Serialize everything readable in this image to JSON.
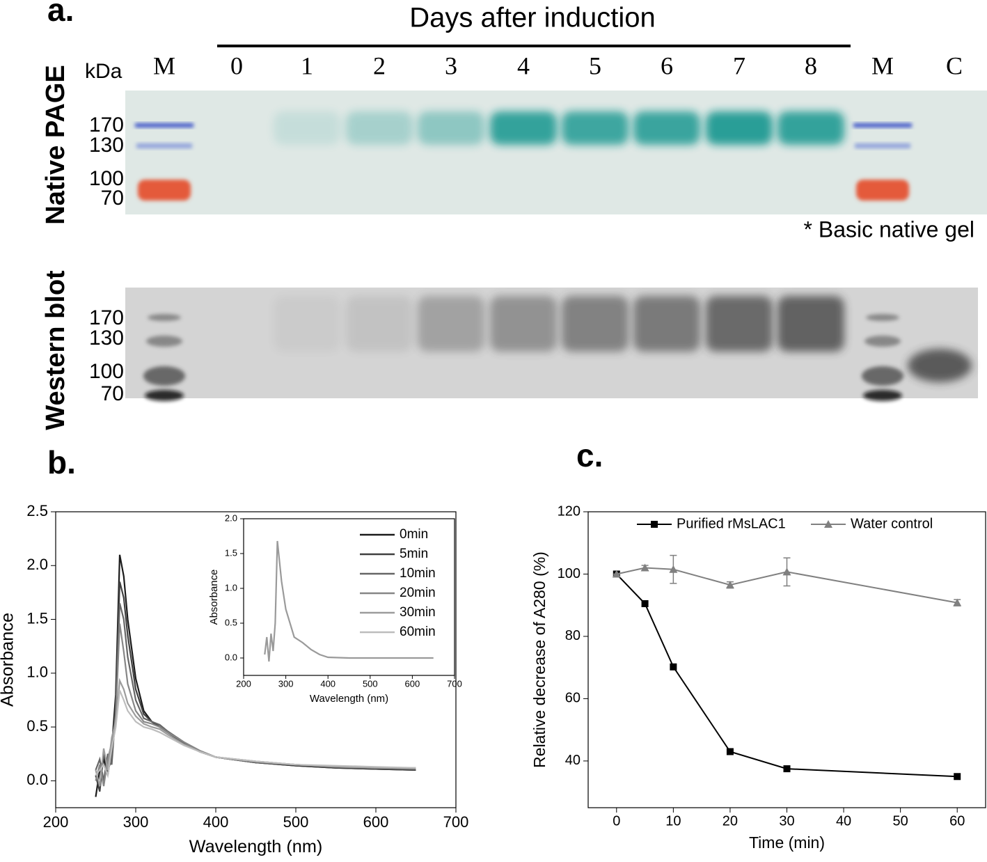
{
  "panel_a": {
    "label": "a.",
    "header": "Days after induction",
    "unit": "kDa",
    "lanes": [
      "M",
      "0",
      "1",
      "2",
      "3",
      "4",
      "5",
      "6",
      "7",
      "8",
      "M",
      "C"
    ],
    "native": {
      "title": "Native PAGE",
      "markers": [
        170,
        130,
        100,
        70
      ],
      "note": "* Basic native gel"
    },
    "western": {
      "title": "Western blot",
      "markers": [
        170,
        130,
        100,
        70
      ]
    }
  },
  "chart_data": [
    {
      "type": "line",
      "label": "b.",
      "xlabel": "Wavelength (nm)",
      "ylabel": "Absorbance",
      "x": [
        250,
        255,
        260,
        265,
        270,
        275,
        280,
        285,
        290,
        300,
        310,
        320,
        330,
        340,
        360,
        380,
        400,
        450,
        500,
        550,
        600,
        650
      ],
      "series": [
        {
          "name": "0min",
          "color": "#1a1a1a",
          "values": [
            -0.15,
            0.1,
            0.2,
            0.05,
            0.3,
            0.8,
            2.1,
            1.9,
            1.5,
            0.95,
            0.65,
            0.55,
            0.5,
            0.45,
            0.35,
            0.27,
            0.22,
            0.17,
            0.14,
            0.12,
            0.11,
            0.1
          ]
        },
        {
          "name": "5min",
          "color": "#404040",
          "values": [
            0.05,
            -0.1,
            0.25,
            0.1,
            0.2,
            0.7,
            1.85,
            1.7,
            1.35,
            0.85,
            0.62,
            0.55,
            0.5,
            0.45,
            0.35,
            0.27,
            0.22,
            0.17,
            0.14,
            0.12,
            0.11,
            0.1
          ]
        },
        {
          "name": "10min",
          "color": "#666666",
          "values": [
            0.1,
            0.2,
            0,
            0.25,
            0.15,
            0.65,
            1.65,
            1.5,
            1.15,
            0.75,
            0.58,
            0.55,
            0.52,
            0.46,
            0.36,
            0.28,
            0.22,
            0.17,
            0.15,
            0.13,
            0.12,
            0.11
          ]
        },
        {
          "name": "20min",
          "color": "#868686",
          "values": [
            0,
            0.15,
            -0.05,
            0.2,
            0.35,
            0.6,
            1.46,
            1.2,
            0.9,
            0.65,
            0.55,
            0.53,
            0.5,
            0.45,
            0.36,
            0.28,
            0.22,
            0.18,
            0.15,
            0.13,
            0.12,
            0.11
          ]
        },
        {
          "name": "30min",
          "color": "#9c9c9c",
          "values": [
            0.1,
            -0.05,
            0.3,
            0.1,
            0.4,
            0.55,
            0.93,
            0.85,
            0.72,
            0.6,
            0.53,
            0.5,
            0.48,
            0.43,
            0.34,
            0.27,
            0.22,
            0.18,
            0.15,
            0.13,
            0.12,
            0.12
          ]
        },
        {
          "name": "60min",
          "color": "#bdbdbd",
          "values": [
            0.05,
            0.1,
            0.15,
            0.05,
            0.3,
            0.5,
            0.84,
            0.75,
            0.65,
            0.55,
            0.5,
            0.48,
            0.45,
            0.41,
            0.33,
            0.27,
            0.22,
            0.18,
            0.15,
            0.14,
            0.13,
            0.12
          ]
        }
      ],
      "xlim": [
        200,
        700
      ],
      "xticks": [
        200,
        300,
        400,
        500,
        600,
        700
      ],
      "ylim": [
        -0.25,
        2.5
      ],
      "yticks": [
        {
          "value": 0,
          "label": "0.0"
        },
        0.5,
        {
          "value": 1,
          "label": "1.0"
        },
        1.5,
        {
          "value": 2,
          "label": "2.0"
        },
        2.5
      ],
      "legend": "upper right"
    },
    {
      "type": "line",
      "xlabel": "Wavelength (nm)",
      "ylabel": "Absorbance",
      "x": [
        250,
        255,
        260,
        265,
        270,
        275,
        280,
        290,
        300,
        320,
        340,
        360,
        380,
        400,
        450,
        500,
        550,
        600,
        650
      ],
      "values": [
        0.05,
        0.3,
        -0.05,
        0.35,
        0.1,
        0.5,
        1.68,
        1.1,
        0.7,
        0.3,
        0.22,
        0.12,
        0.05,
        0.01,
        0,
        0,
        0,
        0,
        0
      ],
      "color": "#9a9a9a",
      "xlim": [
        200,
        700
      ],
      "xticks": [
        200,
        300,
        400,
        500,
        600,
        700
      ],
      "ylim": [
        -0.25,
        2.0
      ],
      "yticks": [
        {
          "value": 0,
          "label": "0.0"
        },
        0.5,
        {
          "value": 1,
          "label": "1.0"
        },
        1.5,
        {
          "value": 2,
          "label": "2.0"
        }
      ]
    },
    {
      "type": "line",
      "label": "c.",
      "xlabel": "Time (min)",
      "ylabel": "Relative decrease of A280 (%)",
      "x": [
        0,
        5,
        10,
        20,
        30,
        60
      ],
      "series": [
        {
          "name": "Purified rMsLAC1",
          "color": "#000000",
          "marker": "square",
          "values": [
            100,
            90.5,
            70.2,
            43,
            37.5,
            35
          ]
        },
        {
          "name": "Water control",
          "color": "#808080",
          "marker": "triangle",
          "values": [
            100,
            102,
            101.5,
            96.5,
            100.7,
            90.8
          ],
          "errors": [
            0,
            0.8,
            4.5,
            1,
            4.5,
            1
          ]
        }
      ],
      "xlim": [
        -5,
        65
      ],
      "xticks": [
        0,
        10,
        20,
        30,
        40,
        50,
        60
      ],
      "ylim": [
        25,
        120
      ],
      "yticks": [
        40,
        60,
        80,
        100,
        120
      ],
      "legend": "upper center"
    }
  ]
}
